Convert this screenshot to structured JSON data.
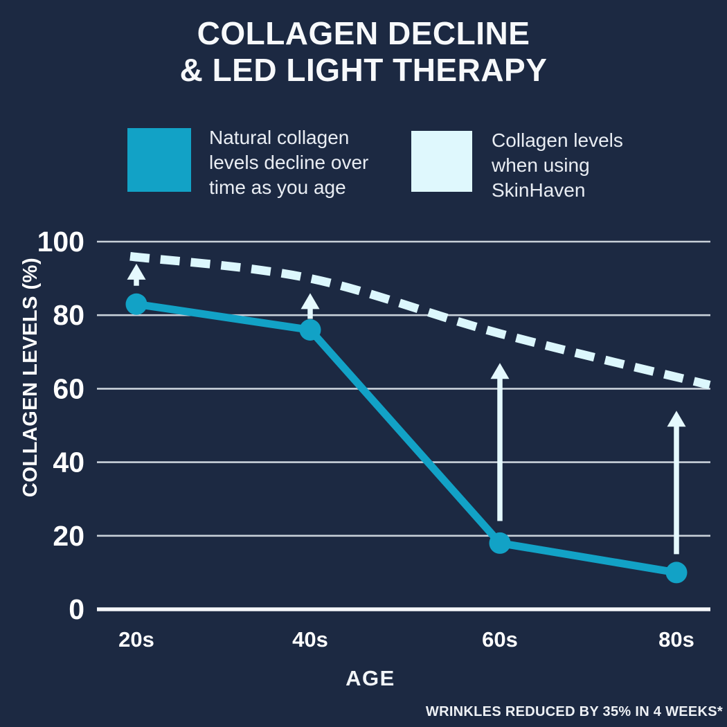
{
  "title": {
    "line1": "COLLAGEN DECLINE",
    "line2": "& LED LIGHT THERAPY"
  },
  "legend": [
    {
      "id": "natural",
      "swatch_color": "#12a2c6",
      "lines": [
        "Natural collagen",
        "levels decline over",
        "time as you age"
      ]
    },
    {
      "id": "skinhaven",
      "swatch_color": "#dff8fd",
      "lines": [
        "Collagen levels",
        "when using",
        "SkinHaven"
      ]
    }
  ],
  "chart_data": {
    "type": "line",
    "title": "COLLAGEN DECLINE & LED LIGHT THERAPY",
    "categories": [
      "20s",
      "40s",
      "60s",
      "80s"
    ],
    "series": [
      {
        "name": "Natural collagen levels decline over time as you age",
        "style": "solid",
        "color": "#12a2c6",
        "values": [
          83,
          76,
          18,
          10
        ]
      },
      {
        "name": "Collagen levels when using SkinHaven",
        "style": "dashed",
        "color": "#dcf7fd",
        "values": [
          96,
          90,
          75,
          61
        ]
      }
    ],
    "xlabel": "AGE",
    "ylabel": "COLLAGEN LEVELS (%)",
    "yticks": [
      100,
      80,
      60,
      40,
      20,
      0
    ],
    "ylim": [
      0,
      100
    ],
    "grid": true,
    "legend_position": "top",
    "annotations": {
      "arrows": [
        {
          "category": "20s",
          "from": 88,
          "to": 94
        },
        {
          "category": "40s",
          "from": 79,
          "to": 86
        },
        {
          "category": "60s",
          "from": 24,
          "to": 67
        },
        {
          "category": "80s",
          "from": 15,
          "to": 54
        }
      ],
      "arrow_color": "#e5f9fe"
    }
  },
  "footnote": "WRINKLES REDUCED BY 35% IN 4 WEEKS*",
  "colors": {
    "background": "#1c2942",
    "grid": "#c9d1da",
    "baseline": "#f5f7f9",
    "text": "#ffffff"
  }
}
